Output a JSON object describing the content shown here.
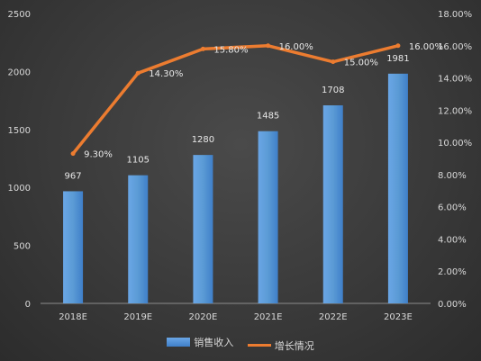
{
  "chart_data": {
    "type": "bar",
    "categories": [
      "2018E",
      "2019E",
      "2020E",
      "2021E",
      "2022E",
      "2023E"
    ],
    "series": [
      {
        "name": "销售收入",
        "type": "bar",
        "axis": "left",
        "values": [
          967,
          1105,
          1280,
          1485,
          1708,
          1981
        ],
        "labels": [
          "967",
          "1105",
          "1280",
          "1485",
          "1708",
          "1981"
        ],
        "color": "#5b9bd5"
      },
      {
        "name": "增长情况",
        "type": "line",
        "axis": "right",
        "values": [
          9.3,
          14.3,
          15.8,
          16.0,
          15.0,
          16.0
        ],
        "labels": [
          "9.30%",
          "14.30%",
          "15.80%",
          "16.00%",
          "15.00%",
          "16.00%"
        ],
        "color": "#ec7c30"
      }
    ],
    "y_left": {
      "ylim": [
        0,
        2500
      ],
      "ticks": [
        "0",
        "500",
        "1000",
        "1500",
        "2000",
        "2500"
      ]
    },
    "y_right": {
      "ylim": [
        0,
        18
      ],
      "ticks": [
        "0.00%",
        "2.00%",
        "4.00%",
        "6.00%",
        "8.00%",
        "10.00%",
        "12.00%",
        "14.00%",
        "16.00%",
        "18.00%"
      ]
    },
    "grid": false,
    "legend_position": "bottom"
  }
}
